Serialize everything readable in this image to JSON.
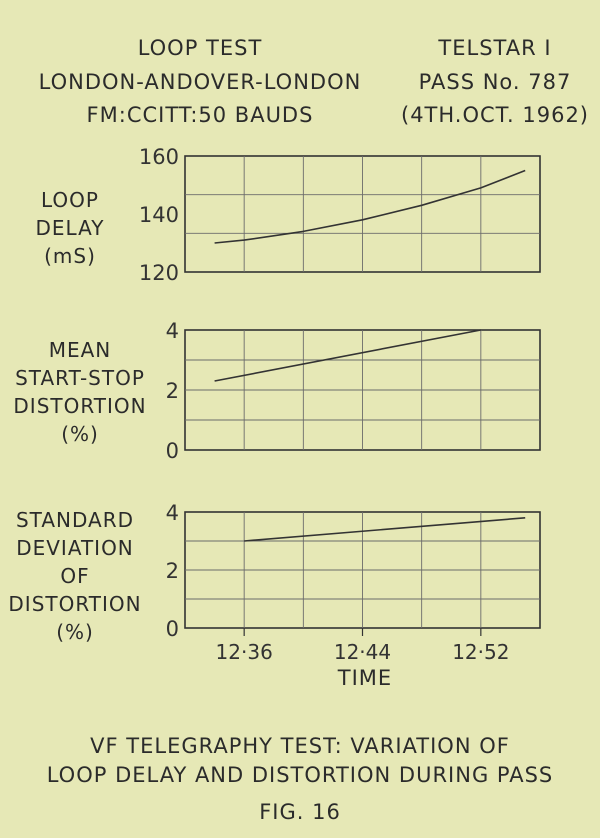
{
  "header": {
    "left": [
      "LOOP TEST",
      "LONDON-ANDOVER-LONDON",
      "FM:CCITT:50 BAUDS"
    ],
    "right": [
      "TELSTAR I",
      "PASS No. 787",
      "(4TH.OCT. 1962)"
    ]
  },
  "caption": [
    "VF TELEGRAPHY TEST: VARIATION OF",
    "LOOP DELAY AND DISTORTION DURING PASS"
  ],
  "figure_label": "FIG. 16",
  "chart_data": [
    {
      "type": "line",
      "ylabel": [
        "LOOP",
        "DELAY",
        "(mS)"
      ],
      "ylim": [
        120,
        160
      ],
      "yticks": [
        "120",
        "140",
        "160"
      ],
      "xlim": [
        "12:32",
        "12:56"
      ],
      "grid": true,
      "series": [
        {
          "x": [
            "12:34",
            "12:36",
            "12:40",
            "12:44",
            "12:48",
            "12:52",
            "12:55"
          ],
          "y": [
            130,
            131,
            134,
            138,
            143,
            149,
            155
          ]
        }
      ]
    },
    {
      "type": "line",
      "ylabel": [
        "MEAN",
        "START-STOP",
        "DISTORTION",
        "(%)"
      ],
      "ylim": [
        0,
        4
      ],
      "yticks": [
        "0",
        "2",
        "4"
      ],
      "xlim": [
        "12:32",
        "12:56"
      ],
      "grid": true,
      "series": [
        {
          "x": [
            "12:34",
            "12:52"
          ],
          "y": [
            2.3,
            4.0
          ]
        }
      ]
    },
    {
      "type": "line",
      "ylabel": [
        "STANDARD",
        "DEVIATION",
        "OF",
        "DISTORTION",
        "(%)"
      ],
      "ylim": [
        0,
        4
      ],
      "yticks": [
        "0",
        "2",
        "4"
      ],
      "xlim": [
        "12:32",
        "12:56"
      ],
      "xticks": [
        "12·36",
        "12·44",
        "12·52"
      ],
      "xlabel": "TIME",
      "grid": true,
      "series": [
        {
          "x": [
            "12:36",
            "12:55"
          ],
          "y": [
            3.0,
            3.8
          ]
        }
      ]
    }
  ]
}
